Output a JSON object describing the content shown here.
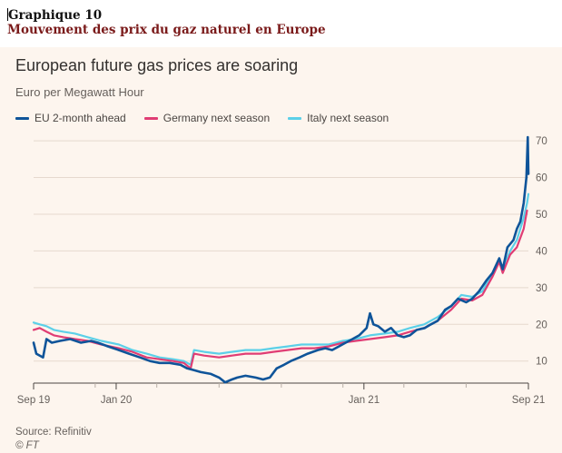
{
  "page_heading": {
    "label": "Graphique 10",
    "title": "Mouvement des prix du gaz naturel en Europe"
  },
  "chart_data": {
    "type": "line",
    "title": "European future gas prices are soaring",
    "subtitle": "Euro per Megawatt Hour",
    "xlabel": "",
    "ylabel": "",
    "xlim": [
      "2019-09-01",
      "2021-09-01"
    ],
    "ylim": [
      4,
      72
    ],
    "yticks": [
      10,
      20,
      30,
      40,
      50,
      60,
      70
    ],
    "xticks": [
      {
        "date": "2019-09-01",
        "label": "Sep 19"
      },
      {
        "date": "2020-01-01",
        "label": "Jan 20"
      },
      {
        "date": "2021-01-01",
        "label": "Jan 21"
      },
      {
        "date": "2021-09-01",
        "label": "Sep 21"
      }
    ],
    "minor_xticks": [
      "2019-12-01",
      "2020-03-01",
      "2020-06-01",
      "2020-09-01",
      "2020-12-01",
      "2021-03-01",
      "2021-06-01"
    ],
    "y_axis_position": "right",
    "grid": "horizontal",
    "legend_position": "top-left",
    "series": [
      {
        "name": "EU 2-month ahead",
        "color": "#0f5499",
        "points": [
          [
            "2019-09-01",
            15
          ],
          [
            "2019-09-05",
            12
          ],
          [
            "2019-09-15",
            11
          ],
          [
            "2019-09-20",
            16
          ],
          [
            "2019-09-28",
            15
          ],
          [
            "2019-10-10",
            15.5
          ],
          [
            "2019-10-25",
            16
          ],
          [
            "2019-11-10",
            15
          ],
          [
            "2019-11-25",
            15.5
          ],
          [
            "2019-12-05",
            15
          ],
          [
            "2019-12-20",
            14
          ],
          [
            "2020-01-05",
            13
          ],
          [
            "2020-01-20",
            12
          ],
          [
            "2020-02-05",
            11
          ],
          [
            "2020-02-20",
            10
          ],
          [
            "2020-03-05",
            9.5
          ],
          [
            "2020-03-20",
            9.5
          ],
          [
            "2020-04-05",
            9
          ],
          [
            "2020-04-15",
            8
          ],
          [
            "2020-04-25",
            7.5
          ],
          [
            "2020-05-05",
            7
          ],
          [
            "2020-05-20",
            6.5
          ],
          [
            "2020-06-01",
            5.5
          ],
          [
            "2020-06-10",
            4.2
          ],
          [
            "2020-06-20",
            5
          ],
          [
            "2020-06-28",
            5.5
          ],
          [
            "2020-07-10",
            6
          ],
          [
            "2020-07-25",
            5.5
          ],
          [
            "2020-08-05",
            5
          ],
          [
            "2020-08-15",
            5.5
          ],
          [
            "2020-08-25",
            8
          ],
          [
            "2020-09-05",
            9
          ],
          [
            "2020-09-15",
            10
          ],
          [
            "2020-09-28",
            11
          ],
          [
            "2020-10-10",
            12
          ],
          [
            "2020-10-25",
            13
          ],
          [
            "2020-11-05",
            13.5
          ],
          [
            "2020-11-15",
            13
          ],
          [
            "2020-11-25",
            14
          ],
          [
            "2020-12-05",
            15
          ],
          [
            "2020-12-15",
            16
          ],
          [
            "2020-12-25",
            17
          ],
          [
            "2021-01-05",
            19
          ],
          [
            "2021-01-10",
            23
          ],
          [
            "2021-01-15",
            20
          ],
          [
            "2021-01-22",
            19.5
          ],
          [
            "2021-02-01",
            18
          ],
          [
            "2021-02-10",
            19
          ],
          [
            "2021-02-20",
            17
          ],
          [
            "2021-03-01",
            16.5
          ],
          [
            "2021-03-10",
            17
          ],
          [
            "2021-03-20",
            18.5
          ],
          [
            "2021-04-01",
            19
          ],
          [
            "2021-04-10",
            20
          ],
          [
            "2021-04-20",
            21
          ],
          [
            "2021-05-01",
            24
          ],
          [
            "2021-05-10",
            25
          ],
          [
            "2021-05-20",
            27
          ],
          [
            "2021-06-01",
            26
          ],
          [
            "2021-06-10",
            27
          ],
          [
            "2021-06-20",
            29
          ],
          [
            "2021-07-01",
            32
          ],
          [
            "2021-07-10",
            34
          ],
          [
            "2021-07-20",
            38
          ],
          [
            "2021-07-25",
            35
          ],
          [
            "2021-08-01",
            41
          ],
          [
            "2021-08-10",
            43
          ],
          [
            "2021-08-15",
            46
          ],
          [
            "2021-08-20",
            48
          ],
          [
            "2021-08-25",
            53
          ],
          [
            "2021-08-29",
            60
          ],
          [
            "2021-08-31",
            71
          ],
          [
            "2021-09-01",
            61
          ]
        ]
      },
      {
        "name": "Germany next season",
        "color": "#e03d74",
        "points": [
          [
            "2019-09-01",
            18.5
          ],
          [
            "2019-09-10",
            19
          ],
          [
            "2019-09-20",
            18
          ],
          [
            "2019-10-01",
            17
          ],
          [
            "2019-10-15",
            16.5
          ],
          [
            "2019-11-01",
            16
          ],
          [
            "2019-11-20",
            15.5
          ],
          [
            "2019-12-10",
            14.5
          ],
          [
            "2020-01-05",
            13.5
          ],
          [
            "2020-01-25",
            12.5
          ],
          [
            "2020-02-15",
            11
          ],
          [
            "2020-03-05",
            10.5
          ],
          [
            "2020-03-25",
            10
          ],
          [
            "2020-04-10",
            9.5
          ],
          [
            "2020-04-20",
            8
          ],
          [
            "2020-04-25",
            12
          ],
          [
            "2020-05-10",
            11.5
          ],
          [
            "2020-06-01",
            11
          ],
          [
            "2020-06-20",
            11.5
          ],
          [
            "2020-07-10",
            12
          ],
          [
            "2020-08-01",
            12
          ],
          [
            "2020-08-20",
            12.5
          ],
          [
            "2020-09-10",
            13
          ],
          [
            "2020-10-01",
            13.5
          ],
          [
            "2020-10-20",
            13.5
          ],
          [
            "2020-11-10",
            14
          ],
          [
            "2020-12-01",
            15
          ],
          [
            "2020-12-20",
            15.5
          ],
          [
            "2021-01-10",
            16
          ],
          [
            "2021-02-01",
            16.5
          ],
          [
            "2021-02-20",
            17
          ],
          [
            "2021-03-10",
            18
          ],
          [
            "2021-03-31",
            19
          ],
          [
            "2021-04-20",
            21
          ],
          [
            "2021-05-10",
            24
          ],
          [
            "2021-05-25",
            27
          ],
          [
            "2021-06-10",
            26.5
          ],
          [
            "2021-06-25",
            28
          ],
          [
            "2021-07-10",
            33
          ],
          [
            "2021-07-20",
            37
          ],
          [
            "2021-07-25",
            34
          ],
          [
            "2021-08-05",
            39
          ],
          [
            "2021-08-15",
            41
          ],
          [
            "2021-08-25",
            46
          ],
          [
            "2021-08-30",
            51
          ]
        ]
      },
      {
        "name": "Italy next season",
        "color": "#5cd0e8",
        "points": [
          [
            "2019-09-01",
            20.5
          ],
          [
            "2019-09-10",
            20
          ],
          [
            "2019-09-20",
            19.5
          ],
          [
            "2019-10-01",
            18.5
          ],
          [
            "2019-10-15",
            18
          ],
          [
            "2019-11-01",
            17.5
          ],
          [
            "2019-11-20",
            16.5
          ],
          [
            "2019-12-10",
            15.5
          ],
          [
            "2020-01-05",
            14.5
          ],
          [
            "2020-01-25",
            13
          ],
          [
            "2020-02-15",
            12
          ],
          [
            "2020-03-05",
            11
          ],
          [
            "2020-03-25",
            10.5
          ],
          [
            "2020-04-10",
            10
          ],
          [
            "2020-04-20",
            9
          ],
          [
            "2020-04-25",
            13
          ],
          [
            "2020-05-10",
            12.5
          ],
          [
            "2020-06-01",
            12
          ],
          [
            "2020-06-20",
            12.5
          ],
          [
            "2020-07-10",
            13
          ],
          [
            "2020-08-01",
            13
          ],
          [
            "2020-08-20",
            13.5
          ],
          [
            "2020-09-10",
            14
          ],
          [
            "2020-10-01",
            14.5
          ],
          [
            "2020-10-20",
            14.5
          ],
          [
            "2020-11-10",
            14.5
          ],
          [
            "2020-12-01",
            15.5
          ],
          [
            "2020-12-20",
            16
          ],
          [
            "2021-01-10",
            17
          ],
          [
            "2021-02-01",
            17.5
          ],
          [
            "2021-02-20",
            18
          ],
          [
            "2021-03-10",
            19
          ],
          [
            "2021-03-31",
            20
          ],
          [
            "2021-04-20",
            22
          ],
          [
            "2021-05-10",
            25
          ],
          [
            "2021-05-25",
            28
          ],
          [
            "2021-06-10",
            27.5
          ],
          [
            "2021-06-25",
            29
          ],
          [
            "2021-07-10",
            34
          ],
          [
            "2021-07-20",
            38
          ],
          [
            "2021-07-25",
            35
          ],
          [
            "2021-08-05",
            40
          ],
          [
            "2021-08-15",
            43
          ],
          [
            "2021-08-25",
            49
          ],
          [
            "2021-08-30",
            53
          ],
          [
            "2021-09-01",
            55.5
          ]
        ]
      }
    ]
  },
  "footer": {
    "source": "Source: Refinitiv",
    "credit": "© FT"
  }
}
